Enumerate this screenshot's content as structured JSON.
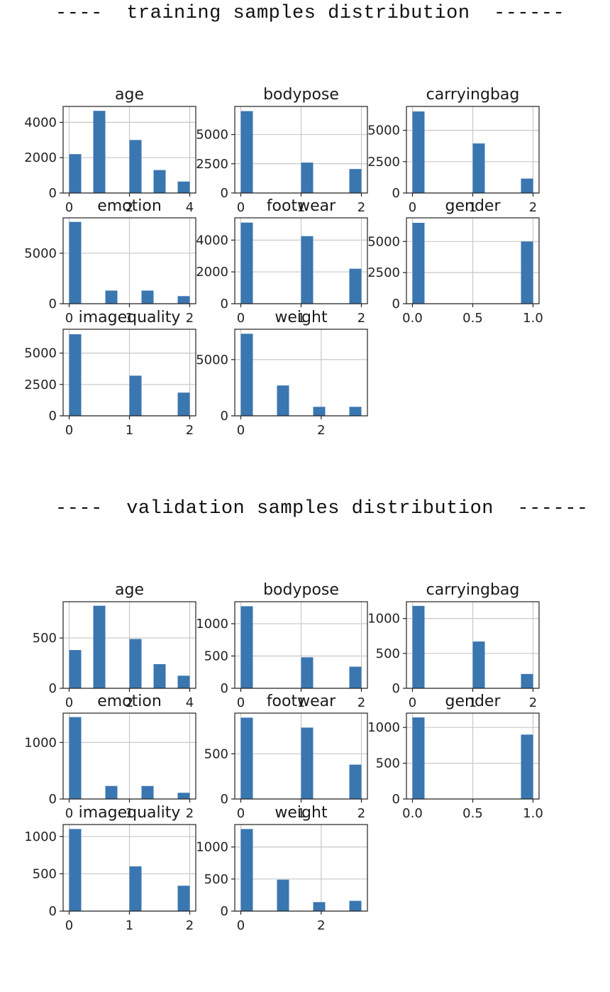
{
  "sections": [
    {
      "title": "----  training samples distribution  ------",
      "charts": [
        {
          "type": "bar",
          "title": "age",
          "bars": [
            [
              0,
              2200
            ],
            [
              0.8,
              4650
            ],
            [
              2.0,
              3000
            ],
            [
              2.8,
              1300
            ],
            [
              3.6,
              650
            ]
          ],
          "xlim": [
            -0.2,
            4.2
          ],
          "ylim": [
            0,
            4900
          ],
          "xticks": [
            0,
            2,
            4
          ],
          "yticks": [
            0,
            2000,
            4000
          ]
        },
        {
          "type": "bar",
          "title": "bodypose",
          "bars": [
            [
              0,
              7000
            ],
            [
              1.0,
              2600
            ],
            [
              1.8,
              2050
            ]
          ],
          "xlim": [
            -0.1,
            2.1
          ],
          "ylim": [
            0,
            7400
          ],
          "xticks": [
            0,
            1,
            2
          ],
          "yticks": [
            0,
            2500,
            5000
          ]
        },
        {
          "type": "bar",
          "title": "carryingbag",
          "bars": [
            [
              0,
              6500
            ],
            [
              1.0,
              3950
            ],
            [
              1.8,
              1150
            ]
          ],
          "xlim": [
            -0.1,
            2.1
          ],
          "ylim": [
            0,
            6900
          ],
          "xticks": [
            0,
            1,
            2
          ],
          "yticks": [
            0,
            2500,
            5000
          ]
        },
        {
          "type": "bar",
          "title": "emotion",
          "bars": [
            [
              0,
              8100
            ],
            [
              0.6,
              1300
            ],
            [
              1.2,
              1300
            ],
            [
              1.8,
              750
            ]
          ],
          "xlim": [
            -0.1,
            2.1
          ],
          "ylim": [
            0,
            8500
          ],
          "xticks": [
            0,
            1,
            2
          ],
          "yticks": [
            0,
            5000
          ]
        },
        {
          "type": "bar",
          "title": "footwear",
          "bars": [
            [
              0,
              5100
            ],
            [
              1.0,
              4250
            ],
            [
              1.8,
              2200
            ]
          ],
          "xlim": [
            -0.1,
            2.1
          ],
          "ylim": [
            0,
            5400
          ],
          "xticks": [
            0,
            1,
            2
          ],
          "yticks": [
            0,
            2000,
            4000
          ]
        },
        {
          "type": "bar",
          "title": "gender",
          "bars": [
            [
              0,
              6500
            ],
            [
              0.9,
              5000
            ]
          ],
          "xlim": [
            -0.05,
            1.05
          ],
          "ylim": [
            0,
            6900
          ],
          "xticks": [
            0.0,
            0.5,
            1.0
          ],
          "yticks": [
            0,
            2500,
            5000
          ]
        },
        {
          "type": "bar",
          "title": "imagequality",
          "bars": [
            [
              0,
              6500
            ],
            [
              1.0,
              3200
            ],
            [
              1.8,
              1850
            ]
          ],
          "xlim": [
            -0.1,
            2.1
          ],
          "ylim": [
            0,
            6900
          ],
          "xticks": [
            0,
            1,
            2
          ],
          "yticks": [
            0,
            2500,
            5000
          ]
        },
        {
          "type": "bar",
          "title": "weight",
          "bars": [
            [
              0,
              7300
            ],
            [
              0.9,
              2700
            ],
            [
              1.8,
              800
            ],
            [
              2.7,
              800
            ]
          ],
          "xlim": [
            -0.15,
            3.15
          ],
          "ylim": [
            0,
            7700
          ],
          "xticks": [
            0,
            2
          ],
          "yticks": [
            0,
            5000
          ]
        }
      ]
    },
    {
      "title": "----  validation samples distribution  ------",
      "charts": [
        {
          "type": "bar",
          "title": "age",
          "bars": [
            [
              0,
              380
            ],
            [
              0.8,
              820
            ],
            [
              2.0,
              490
            ],
            [
              2.8,
              240
            ],
            [
              3.6,
              125
            ]
          ],
          "xlim": [
            -0.2,
            4.2
          ],
          "ylim": [
            0,
            860
          ],
          "xticks": [
            0,
            2,
            4
          ],
          "yticks": [
            0,
            500
          ]
        },
        {
          "type": "bar",
          "title": "bodypose",
          "bars": [
            [
              0,
              1270
            ],
            [
              1.0,
              480
            ],
            [
              1.8,
              335
            ]
          ],
          "xlim": [
            -0.1,
            2.1
          ],
          "ylim": [
            0,
            1340
          ],
          "xticks": [
            0,
            1,
            2
          ],
          "yticks": [
            0,
            500,
            1000
          ]
        },
        {
          "type": "bar",
          "title": "carryingbag",
          "bars": [
            [
              0,
              1180
            ],
            [
              1.0,
              670
            ],
            [
              1.8,
              205
            ]
          ],
          "xlim": [
            -0.1,
            2.1
          ],
          "ylim": [
            0,
            1240
          ],
          "xticks": [
            0,
            1,
            2
          ],
          "yticks": [
            0,
            500,
            1000
          ]
        },
        {
          "type": "bar",
          "title": "emotion",
          "bars": [
            [
              0,
              1450
            ],
            [
              0.6,
              230
            ],
            [
              1.2,
              230
            ],
            [
              1.8,
              110
            ]
          ],
          "xlim": [
            -0.1,
            2.1
          ],
          "ylim": [
            0,
            1520
          ],
          "xticks": [
            0,
            1,
            2
          ],
          "yticks": [
            0,
            1000
          ]
        },
        {
          "type": "bar",
          "title": "footwear",
          "bars": [
            [
              0,
              900
            ],
            [
              1.0,
              790
            ],
            [
              1.8,
              380
            ]
          ],
          "xlim": [
            -0.1,
            2.1
          ],
          "ylim": [
            0,
            950
          ],
          "xticks": [
            0,
            1,
            2
          ],
          "yticks": [
            0,
            500
          ]
        },
        {
          "type": "bar",
          "title": "gender",
          "bars": [
            [
              0,
              1140
            ],
            [
              0.9,
              900
            ]
          ],
          "xlim": [
            -0.05,
            1.05
          ],
          "ylim": [
            0,
            1200
          ],
          "xticks": [
            0.0,
            0.5,
            1.0
          ],
          "yticks": [
            0,
            500,
            1000
          ]
        },
        {
          "type": "bar",
          "title": "imagequality",
          "bars": [
            [
              0,
              1100
            ],
            [
              1.0,
              600
            ],
            [
              1.8,
              340
            ]
          ],
          "xlim": [
            -0.1,
            2.1
          ],
          "ylim": [
            0,
            1160
          ],
          "xticks": [
            0,
            1,
            2
          ],
          "yticks": [
            0,
            500,
            1000
          ]
        },
        {
          "type": "bar",
          "title": "weight",
          "bars": [
            [
              0,
              1280
            ],
            [
              0.9,
              490
            ],
            [
              1.8,
              140
            ],
            [
              2.7,
              160
            ]
          ],
          "xlim": [
            -0.15,
            3.15
          ],
          "ylim": [
            0,
            1350
          ],
          "xticks": [
            0,
            2
          ],
          "yticks": [
            0,
            500,
            1000
          ]
        }
      ]
    }
  ],
  "colors": {
    "bar": "#3a76b0",
    "grid": "#c8c8c8",
    "axis": "#222222"
  }
}
